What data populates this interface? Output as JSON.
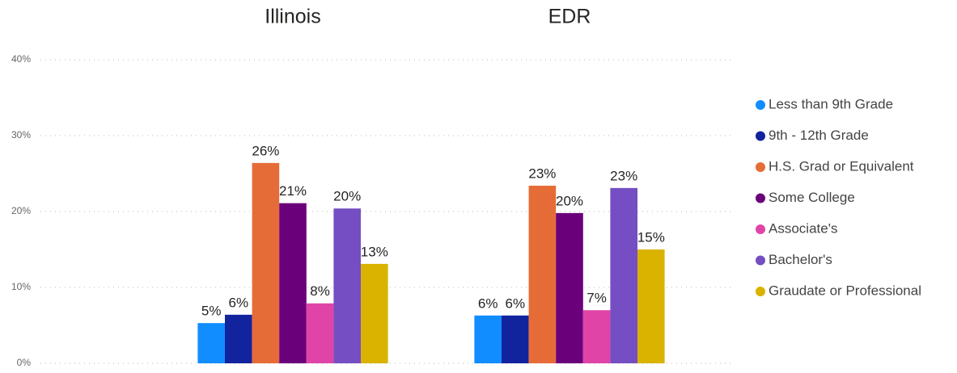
{
  "chart_data": {
    "type": "bar",
    "categories": [
      "Illinois",
      "EDR"
    ],
    "series": [
      {
        "name": "Less than 9th Grade",
        "color": "#118dff",
        "values": [
          5.3,
          6.3
        ],
        "value_labels": [
          "5%",
          "6%"
        ]
      },
      {
        "name": "9th - 12th Grade",
        "color": "#12239e",
        "values": [
          6.4,
          6.3
        ],
        "value_labels": [
          "6%",
          "6%"
        ]
      },
      {
        "name": "H.S. Grad or Equivalent",
        "color": "#e66c37",
        "values": [
          26.4,
          23.4
        ],
        "value_labels": [
          "26%",
          "23%"
        ]
      },
      {
        "name": "Some College",
        "color": "#6b007b",
        "values": [
          21.1,
          19.8
        ],
        "value_labels": [
          "21%",
          "20%"
        ]
      },
      {
        "name": "Associate's",
        "color": "#e044a7",
        "values": [
          7.9,
          7.0
        ],
        "value_labels": [
          "8%",
          "7%"
        ]
      },
      {
        "name": "Bachelor's",
        "color": "#744ec2",
        "values": [
          20.4,
          23.1
        ],
        "value_labels": [
          "20%",
          "23%"
        ]
      },
      {
        "name": "Graudate or Professional",
        "color": "#d9b300",
        "values": [
          13.1,
          15.0
        ],
        "value_labels": [
          "13%",
          "15%"
        ]
      }
    ],
    "ylim": [
      0,
      40
    ],
    "yticks": [
      {
        "value": 0,
        "label": "0%"
      },
      {
        "value": 10,
        "label": "10%"
      },
      {
        "value": 20,
        "label": "20%"
      },
      {
        "value": 30,
        "label": "30%"
      },
      {
        "value": 40,
        "label": "40%"
      }
    ],
    "grid": true,
    "legend": "right"
  }
}
